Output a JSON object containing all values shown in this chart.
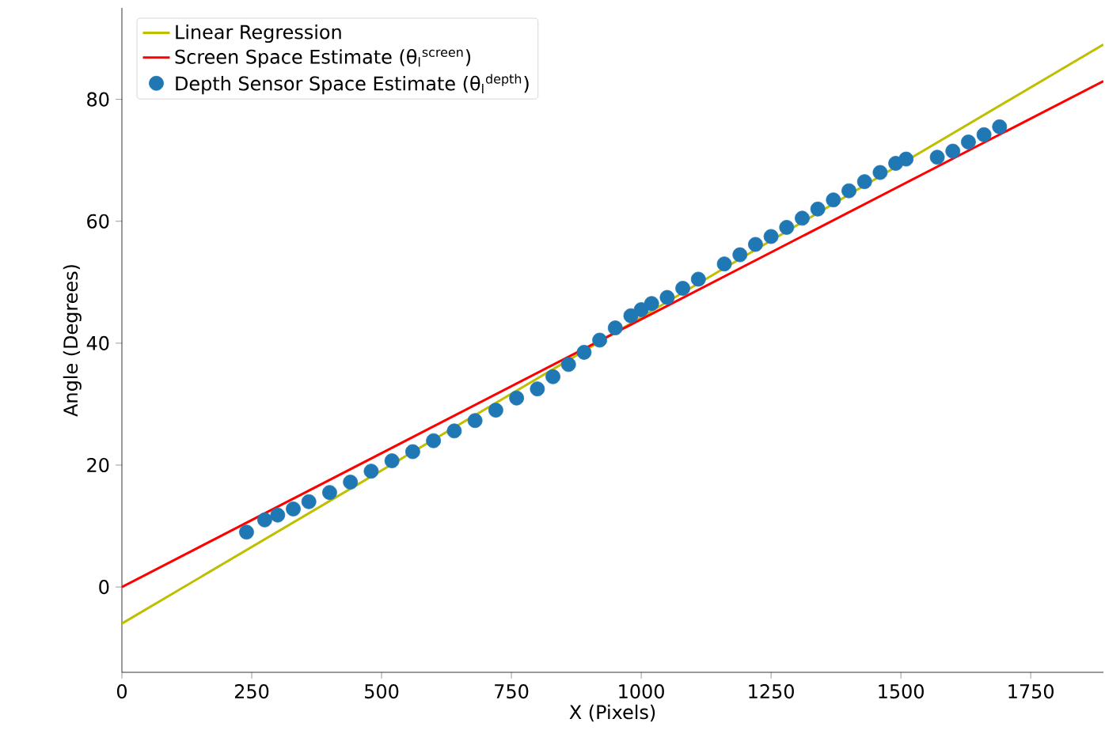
{
  "chart_data": {
    "type": "scatter",
    "xlabel": "X (Pixels)",
    "ylabel": "Angle (Degrees)",
    "xlim": [
      0,
      1890
    ],
    "ylim": [
      -14,
      95
    ],
    "xticks": [
      0,
      250,
      500,
      750,
      1000,
      1250,
      1500,
      1750
    ],
    "yticks": [
      0,
      20,
      40,
      60,
      80
    ],
    "legend": "top left",
    "grid": false,
    "series": [
      {
        "name": "Linear Regression",
        "type": "line",
        "marker": "none",
        "color": "#bfbf00",
        "x": [
          0,
          1890
        ],
        "values": [
          -6,
          89
        ]
      },
      {
        "name": "Screen Space Estimate (θ$_{l}$$^{screen}$)",
        "type": "line",
        "marker": "none",
        "color": "#ff0000",
        "x": [
          0,
          1890
        ],
        "values": [
          0,
          83
        ]
      },
      {
        "name": "Depth Sensor Space Estimate (θ$_{l}$$^{depth}$)",
        "marker": "circle",
        "color": "#1f77b4",
        "x": [
          240,
          275,
          300,
          330,
          360,
          400,
          440,
          480,
          520,
          560,
          600,
          640,
          680,
          720,
          760,
          800,
          830,
          860,
          890,
          920,
          950,
          980,
          1000,
          1020,
          1050,
          1080,
          1110,
          1160,
          1190,
          1220,
          1250,
          1280,
          1310,
          1340,
          1370,
          1400,
          1430,
          1460,
          1490,
          1510,
          1570,
          1600,
          1630,
          1660,
          1690
        ],
        "values": [
          9,
          11,
          11.8,
          12.8,
          14,
          15.5,
          17.2,
          19,
          20.7,
          22.2,
          24,
          25.6,
          27.3,
          29,
          31,
          32.5,
          34.5,
          36.5,
          38.5,
          40.5,
          42.5,
          44.5,
          45.5,
          46.5,
          47.5,
          49,
          50.5,
          53,
          54.5,
          56.2,
          57.5,
          59,
          60.5,
          62,
          63.5,
          65,
          66.5,
          68,
          69.5,
          70.2,
          70.5,
          71.5,
          73,
          74.2,
          75.5
        ]
      }
    ]
  }
}
